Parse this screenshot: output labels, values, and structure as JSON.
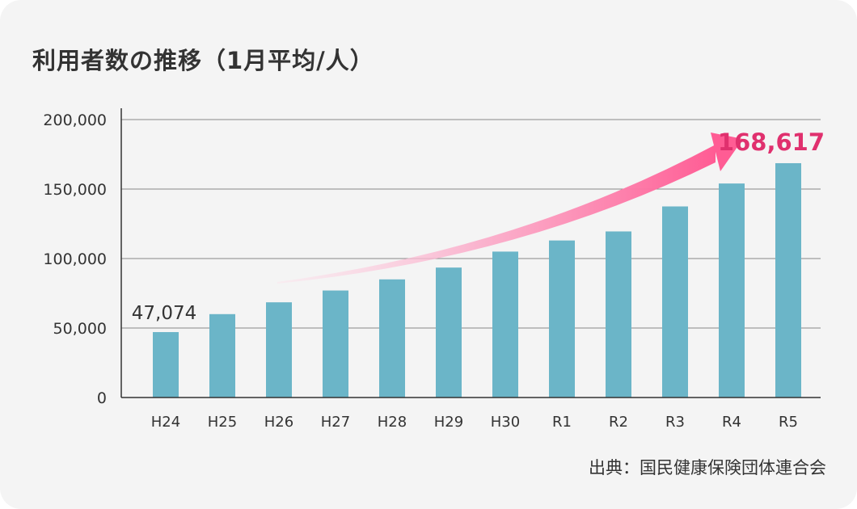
{
  "title": "利用者数の推移（1月平均/人）",
  "source": "出典：国民健康保険団体連合会",
  "colors": {
    "background": "#f4f4f4",
    "bar": "#6bb5c8",
    "gridline": "#888888",
    "axis": "#333333",
    "highlight": "#e0306e",
    "arrow_start": "#fde0ea",
    "arrow_end": "#ff5c94"
  },
  "chart_data": {
    "type": "bar",
    "title": "利用者数の推移（1月平均/人）",
    "xlabel": "",
    "ylabel": "",
    "ylim": [
      0,
      200000
    ],
    "yticks": [
      0,
      50000,
      100000,
      150000,
      200000
    ],
    "ytick_labels": [
      "0",
      "50,000",
      "100,000",
      "150,000",
      "200,000"
    ],
    "grid": true,
    "categories": [
      "H24",
      "H25",
      "H26",
      "H27",
      "H28",
      "H29",
      "H30",
      "R1",
      "R2",
      "R3",
      "R4",
      "R5"
    ],
    "values": [
      47074,
      60000,
      68500,
      77000,
      85000,
      93500,
      105000,
      113000,
      119500,
      137500,
      154000,
      168617
    ],
    "annotations": [
      {
        "category": "H24",
        "text": "47,074"
      },
      {
        "category": "R5",
        "text": "168,617"
      }
    ],
    "trend_arrow": {
      "from": "H26",
      "to": "R4",
      "direction": "up"
    }
  }
}
